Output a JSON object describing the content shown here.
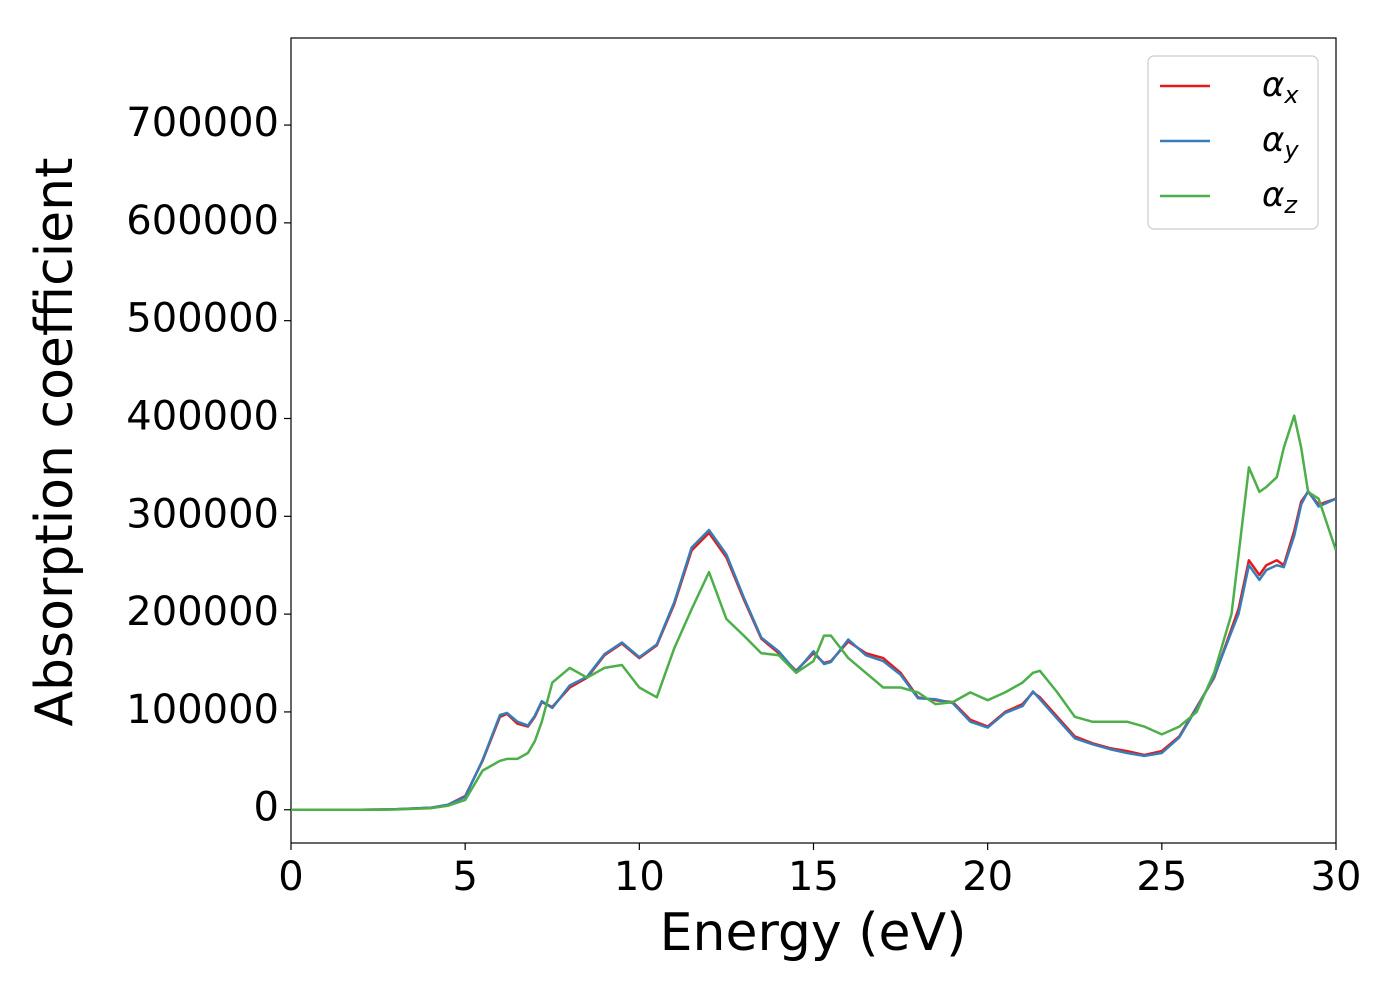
{
  "chart_data": {
    "type": "line",
    "xlabel": "Energy (eV)",
    "ylabel": "Absorption coefficient",
    "xlim": [
      0,
      30
    ],
    "xticks": [
      0,
      5,
      10,
      15,
      20,
      25,
      30
    ],
    "ylim": [
      -34000,
      789000
    ],
    "yticks": [
      0,
      100000,
      200000,
      300000,
      400000,
      500000,
      600000,
      700000
    ],
    "legend": "upper right",
    "grid": false,
    "x": [
      0,
      1,
      2,
      3,
      4,
      4.5,
      5,
      5.5,
      6,
      6.2,
      6.5,
      6.8,
      7,
      7.2,
      7.5,
      8,
      8.5,
      9,
      9.5,
      10,
      10.5,
      11,
      11.5,
      12,
      12.5,
      13,
      13.5,
      14,
      14.5,
      15,
      15.3,
      15.5,
      16,
      16.5,
      17,
      17.5,
      18,
      18.5,
      19,
      19.5,
      20,
      20.5,
      21,
      21.3,
      21.5,
      22,
      22.5,
      23,
      23.5,
      24,
      24.5,
      25,
      25.5,
      26,
      26.5,
      27,
      27.2,
      27.5,
      27.8,
      28,
      28.3,
      28.5,
      28.8,
      29,
      29.2,
      29.5,
      30
    ],
    "series": [
      {
        "name": "α",
        "subscript": "x",
        "color": "#e41a1c",
        "values": [
          0,
          0,
          0,
          500,
          2000,
          5000,
          14000,
          50000,
          95000,
          98000,
          88000,
          85000,
          95000,
          110000,
          105000,
          125000,
          135000,
          158000,
          170000,
          155000,
          168000,
          210000,
          265000,
          283000,
          258000,
          215000,
          175000,
          160000,
          142000,
          160000,
          150000,
          152000,
          172000,
          160000,
          155000,
          140000,
          115000,
          112000,
          110000,
          92000,
          85000,
          100000,
          108000,
          120000,
          115000,
          95000,
          75000,
          68000,
          63000,
          60000,
          56000,
          60000,
          75000,
          105000,
          135000,
          185000,
          205000,
          255000,
          240000,
          250000,
          255000,
          250000,
          285000,
          315000,
          325000,
          312000,
          318000
        ]
      },
      {
        "name": "α",
        "subscript": "y",
        "color": "#377eb8",
        "values": [
          0,
          0,
          0,
          500,
          2000,
          5000,
          13000,
          51000,
          97000,
          99000,
          90000,
          86000,
          96000,
          111000,
          104000,
          127000,
          136000,
          159000,
          171000,
          156000,
          169000,
          212000,
          268000,
          286000,
          261000,
          217000,
          176000,
          162000,
          141000,
          162000,
          149000,
          151000,
          174000,
          158000,
          152000,
          138000,
          114000,
          113000,
          109000,
          90000,
          84000,
          99000,
          106000,
          121000,
          113000,
          93000,
          73000,
          67000,
          62000,
          58000,
          55000,
          58000,
          74000,
          104000,
          136000,
          182000,
          200000,
          250000,
          235000,
          245000,
          250000,
          248000,
          280000,
          312000,
          326000,
          310000,
          318000
        ]
      },
      {
        "name": "α",
        "subscript": "z",
        "color": "#4daf4a",
        "values": [
          0,
          0,
          0,
          300,
          1500,
          4000,
          10000,
          40000,
          50000,
          52000,
          52000,
          58000,
          70000,
          90000,
          130000,
          145000,
          135000,
          145000,
          148000,
          125000,
          115000,
          165000,
          205000,
          243000,
          195000,
          178000,
          160000,
          158000,
          140000,
          152000,
          178000,
          178000,
          155000,
          140000,
          125000,
          125000,
          120000,
          108000,
          110000,
          120000,
          112000,
          120000,
          130000,
          140000,
          142000,
          120000,
          95000,
          90000,
          90000,
          90000,
          85000,
          77000,
          85000,
          100000,
          140000,
          200000,
          260000,
          350000,
          325000,
          330000,
          340000,
          370000,
          403000,
          370000,
          325000,
          318000,
          265000
        ]
      }
    ]
  }
}
